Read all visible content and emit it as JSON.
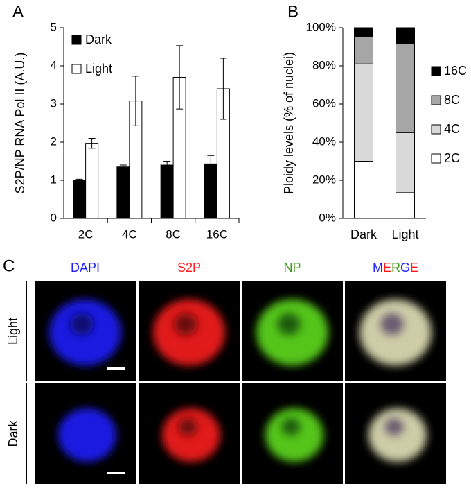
{
  "chart_data": [
    {
      "type": "bar",
      "label": "A",
      "ylabel": "S2P/NP RNA Pol II (A.U.)",
      "categories": [
        "2C",
        "4C",
        "8C",
        "16C"
      ],
      "series": [
        {
          "name": "Dark",
          "color": "#000000",
          "values": [
            1.0,
            1.35,
            1.4,
            1.43
          ],
          "errors": [
            0.03,
            0.05,
            0.1,
            0.22
          ]
        },
        {
          "name": "Light",
          "color": "#ffffff",
          "values": [
            1.97,
            3.08,
            3.7,
            3.4
          ],
          "errors": [
            0.13,
            0.65,
            0.83,
            0.8
          ]
        }
      ],
      "ylim": [
        0,
        5
      ],
      "yticks": [
        0,
        1,
        2,
        3,
        4,
        5
      ],
      "legend": "upper left"
    },
    {
      "type": "stacked_bar",
      "label": "B",
      "ylabel": "Ploidy levels (% of nuclei)",
      "categories": [
        "Dark",
        "Light"
      ],
      "series": [
        {
          "name": "2C",
          "color": "#ffffff",
          "values": [
            30,
            13.5
          ]
        },
        {
          "name": "4C",
          "color": "#d9d9d9",
          "values": [
            51,
            31.5
          ]
        },
        {
          "name": "8C",
          "color": "#a6a6a6",
          "values": [
            14.5,
            46.5
          ]
        },
        {
          "name": "16C",
          "color": "#000000",
          "values": [
            4.5,
            8.5
          ]
        }
      ],
      "ylim": [
        0,
        100
      ],
      "yticks": [
        {
          "value": 0,
          "label": "0%"
        },
        {
          "value": 20,
          "label": "20%"
        },
        {
          "value": 40,
          "label": "40%"
        },
        {
          "value": 60,
          "label": "60%"
        },
        {
          "value": 80,
          "label": "80%"
        },
        {
          "value": 100,
          "label": "100%"
        }
      ],
      "legend": "right"
    }
  ],
  "panel_c": {
    "label": "C",
    "columns": [
      {
        "letters": [
          {
            "text": "DAPI",
            "color": "#2020ff"
          }
        ]
      },
      {
        "letters": [
          {
            "text": "S2P",
            "color": "#ff1a1a"
          }
        ]
      },
      {
        "letters": [
          {
            "text": "NP",
            "color": "#3a9a1a"
          }
        ]
      },
      {
        "letters": [
          {
            "text": "M",
            "color": "#2020ff"
          },
          {
            "text": "E",
            "color": "#ff1a1a"
          },
          {
            "text": "R",
            "color": "#3a9a1a"
          },
          {
            "text": "G",
            "color": "#2020ff"
          },
          {
            "text": "E",
            "color": "#ff1a1a"
          }
        ]
      }
    ],
    "rows": [
      "Light",
      "Dark"
    ]
  }
}
